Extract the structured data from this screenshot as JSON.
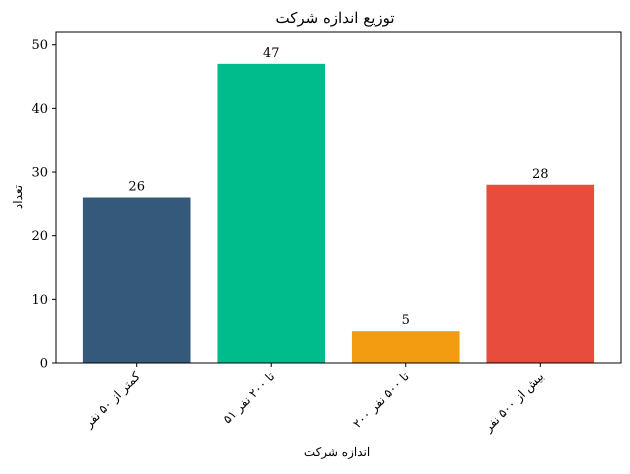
{
  "chart_data": {
    "type": "bar",
    "title": "توزیع اندازه شرکت",
    "xlabel": "اندازه شرکت",
    "ylabel": "تعداد",
    "categories": [
      "کمتر از ۵۰ نفر",
      "۵۱ تا ۲۰۰ نفر",
      "۲۰۰ تا ۵۰۰ نفر",
      "بیش از ۵۰۰ نفر"
    ],
    "values": [
      26,
      47,
      5,
      28
    ],
    "data_labels": [
      "26",
      "47",
      "5",
      "28"
    ],
    "colors": [
      "#34597b",
      "#00bc8c",
      "#f39c12",
      "#e74c3c"
    ],
    "ylim": [
      0,
      52
    ],
    "yticks": [
      0,
      10,
      20,
      30,
      40,
      50
    ],
    "ytick_labels": [
      "0",
      "10",
      "20",
      "30",
      "40",
      "50"
    ],
    "grid": false,
    "legend": "none"
  }
}
